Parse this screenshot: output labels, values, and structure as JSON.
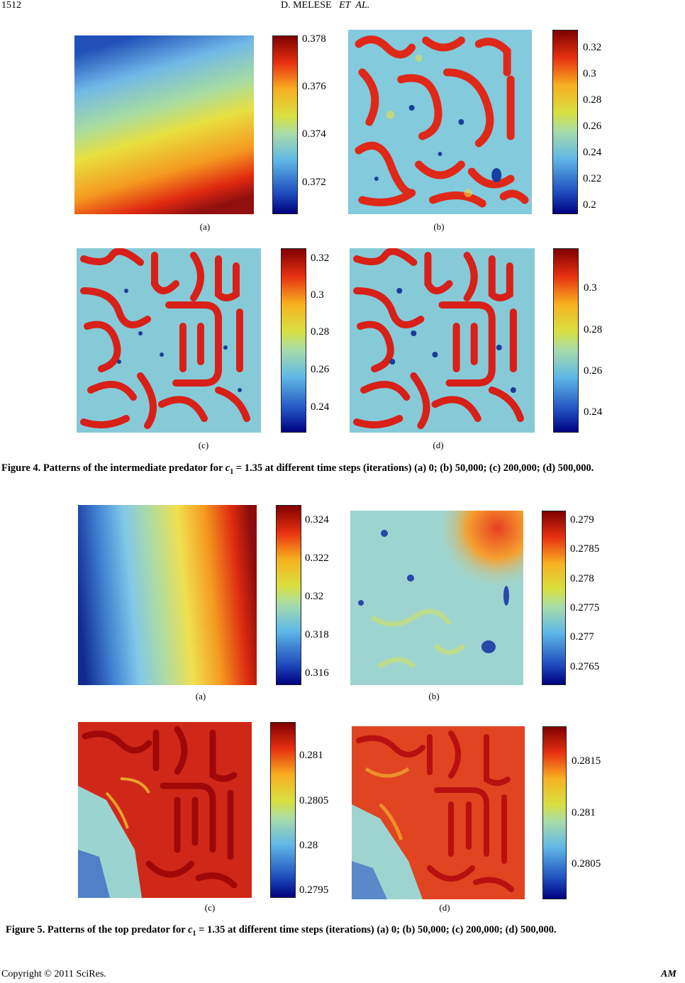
{
  "header": {
    "page_number": "1512",
    "author": "D. MELESE",
    "et": "ET",
    "al": "AL."
  },
  "fig4": {
    "caption_pre": "Figure 4. Patterns of the intermediate predator for ",
    "var": "c",
    "sub": "1",
    "caption_post": " = 1.35 at different time steps (iterations) (a) 0; (b) 50,000; (c) 200,000; (d) 500,000.",
    "labels": [
      "(a)",
      "(b)",
      "(c)",
      "(d)"
    ],
    "colorbars": [
      [
        "0.378",
        "0.376",
        "0.374",
        "0.372"
      ],
      [
        "0.32",
        "0.3",
        "0.28",
        "0.26",
        "0.24",
        "0.22",
        "0.2"
      ],
      [
        "0.32",
        "0.3",
        "0.28",
        "0.26",
        "0.24"
      ],
      [
        "0.3",
        "0.28",
        "0.26",
        "0.24"
      ]
    ]
  },
  "fig5": {
    "caption_pre": "Figure 5. Patterns of the top predator for ",
    "var": "c",
    "sub": "1",
    "caption_post": " = 1.35 at different time steps (iterations) (a) 0; (b) 50,000; (c) 200,000; (d) 500,000.",
    "labels": [
      "(a)",
      "(b)",
      "(c)",
      "(d)"
    ],
    "colorbars": [
      [
        "0.324",
        "0.322",
        "0.32",
        "0.318",
        "0.316"
      ],
      [
        "0.279",
        "0.2785",
        "0.278",
        "0.2775",
        "0.277",
        "0.2765"
      ],
      [
        "0.281",
        "0.2805",
        "0.28",
        "0.2795"
      ],
      [
        "0.2815",
        "0.281",
        "0.2805"
      ]
    ]
  },
  "footer": {
    "copyright": "Copyright © 2011 SciRes.",
    "journal": "AM"
  }
}
